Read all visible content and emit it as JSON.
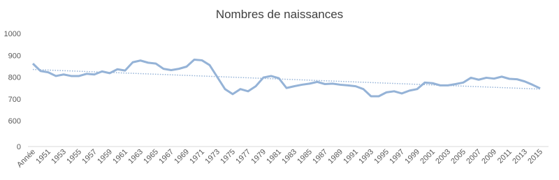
{
  "chart_data": {
    "type": "line",
    "title": "Nombres de naissances",
    "categories": [
      "Année",
      null,
      "1951",
      null,
      "1953",
      null,
      "1955",
      null,
      "1957",
      null,
      "1959",
      null,
      "1961",
      null,
      "1963",
      null,
      "1965",
      null,
      "1967",
      null,
      "1969",
      null,
      "1971",
      null,
      "1973",
      null,
      "1975",
      null,
      "1977",
      null,
      "1979",
      null,
      "1981",
      null,
      "1983",
      null,
      "1985",
      null,
      "1987",
      null,
      "1989",
      null,
      "1991",
      null,
      "1993",
      null,
      "1995",
      null,
      "1997",
      null,
      "1999",
      null,
      "2001",
      null,
      "2003",
      null,
      "2005",
      null,
      "2007",
      null,
      "2009",
      null,
      "2011",
      null,
      "2013",
      null,
      "2015"
    ],
    "series": [
      {
        "color": "#95b3d7",
        "values": [
          862,
          828,
          822,
          805,
          812,
          805,
          805,
          815,
          812,
          826,
          818,
          836,
          830,
          868,
          876,
          866,
          862,
          838,
          832,
          838,
          848,
          880,
          877,
          855,
          800,
          745,
          722,
          745,
          735,
          758,
          798,
          805,
          795,
          750,
          758,
          765,
          770,
          778,
          768,
          770,
          765,
          762,
          758,
          745,
          712,
          712,
          730,
          735,
          725,
          738,
          745,
          775,
          772,
          762,
          762,
          768,
          775,
          797,
          788,
          797,
          793,
          802,
          792,
          790,
          780,
          765,
          748
        ]
      }
    ],
    "trendline": {
      "color": "#95b3d7",
      "values": [
        835,
        745
      ]
    },
    "ylim": [
      0,
      1000
    ],
    "yticks": [
      0,
      600,
      700,
      800,
      900,
      1000
    ],
    "axis_break_at": 600,
    "grid": false
  }
}
